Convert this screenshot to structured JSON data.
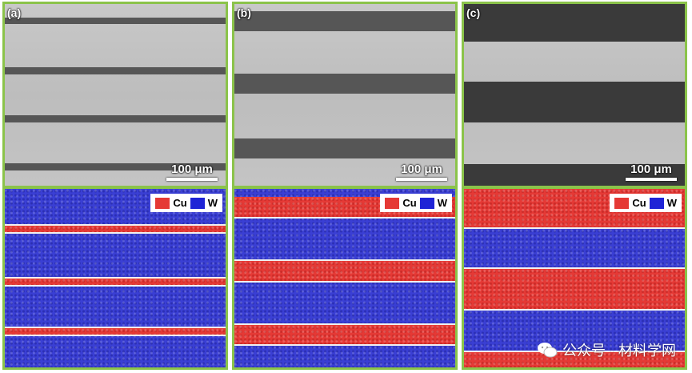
{
  "panels": [
    {
      "label": "(a)",
      "scale": "100 μm"
    },
    {
      "label": "(b)",
      "scale": "100 μm"
    },
    {
      "label": "(c)",
      "scale": "100 μm"
    }
  ],
  "legend": {
    "cu": "Cu",
    "w": "W",
    "cu_color": "#e53935",
    "w_color": "#3a3fd4"
  },
  "watermark": {
    "text": "公众号 · 材料学网",
    "icon": "wechat-icon"
  }
}
